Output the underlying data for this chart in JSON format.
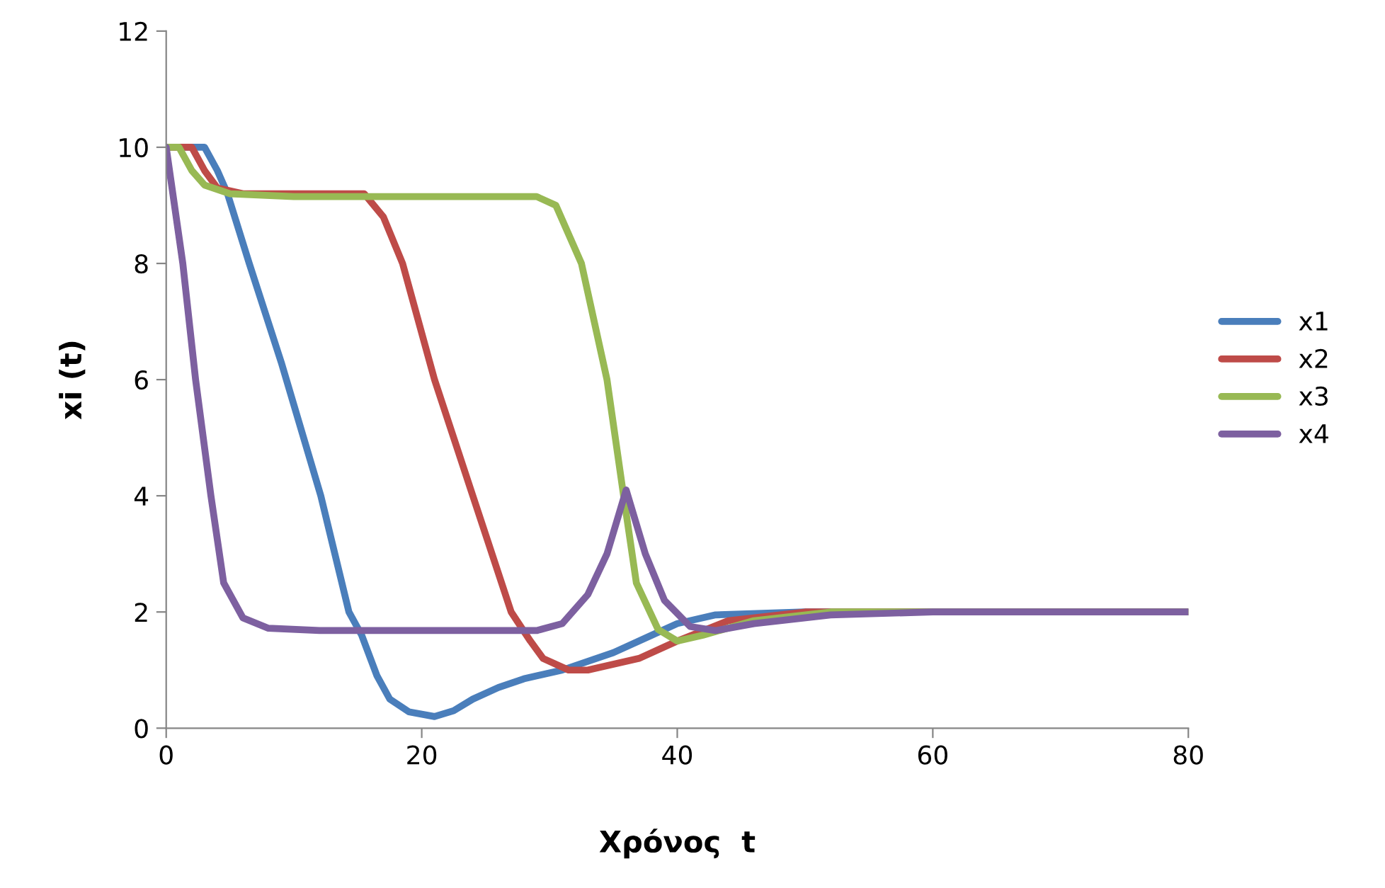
{
  "chart_data": {
    "type": "line",
    "xlabel": "Χρόνος  t",
    "ylabel": "xi (t)",
    "xlim": [
      0,
      80
    ],
    "ylim": [
      0,
      12
    ],
    "xticks": [
      0,
      20,
      40,
      60,
      80
    ],
    "yticks": [
      0,
      2,
      4,
      6,
      8,
      10,
      12
    ],
    "grid": false,
    "legend": "right",
    "marker": "none",
    "line_style": "solid",
    "series": [
      {
        "name": "x1",
        "color": "#4a7ebb",
        "x": [
          0,
          2,
          3,
          4,
          4.8,
          6.5,
          9,
          12.1,
          14.3,
          15.3,
          16.5,
          17.5,
          19,
          21,
          22.5,
          24,
          26,
          28,
          31,
          35,
          38,
          40,
          43,
          50,
          80
        ],
        "values": [
          10,
          10,
          10,
          9.6,
          9.2,
          8,
          6.3,
          4,
          2,
          1.6,
          0.9,
          0.5,
          0.28,
          0.2,
          0.3,
          0.5,
          0.7,
          0.85,
          1.0,
          1.3,
          1.6,
          1.8,
          1.95,
          2.0,
          2.0
        ]
      },
      {
        "name": "x2",
        "color": "#be4b48",
        "x": [
          0,
          2,
          3,
          4,
          6,
          8,
          15.5,
          17,
          18.5,
          21,
          24,
          27,
          28.5,
          29.5,
          31.5,
          33,
          37,
          40,
          44,
          50,
          80
        ],
        "values": [
          10,
          10,
          9.6,
          9.3,
          9.2,
          9.2,
          9.2,
          8.8,
          8,
          6,
          4,
          2,
          1.5,
          1.2,
          1.0,
          1.0,
          1.2,
          1.5,
          1.85,
          2.0,
          2.0
        ]
      },
      {
        "name": "x3",
        "color": "#98b954",
        "x": [
          0,
          1,
          2,
          3,
          5,
          10,
          29,
          30.5,
          32.5,
          34.5,
          35.8,
          36.8,
          38.5,
          40,
          42,
          46,
          52,
          80
        ],
        "values": [
          10,
          10,
          9.6,
          9.35,
          9.2,
          9.15,
          9.15,
          9.0,
          8,
          6,
          4,
          2.5,
          1.7,
          1.5,
          1.6,
          1.85,
          2.0,
          2.0
        ]
      },
      {
        "name": "x4",
        "color": "#7d60a0",
        "x": [
          0,
          1.3,
          2.3,
          3.5,
          4.5,
          6,
          8,
          12,
          29,
          31,
          33,
          34.5,
          36,
          37.5,
          39,
          41,
          43,
          46,
          52,
          60,
          80
        ],
        "values": [
          10,
          8,
          6,
          4,
          2.5,
          1.9,
          1.72,
          1.68,
          1.68,
          1.8,
          2.3,
          3,
          4.1,
          3.0,
          2.2,
          1.75,
          1.68,
          1.8,
          1.95,
          2.0,
          2.0
        ]
      }
    ]
  }
}
